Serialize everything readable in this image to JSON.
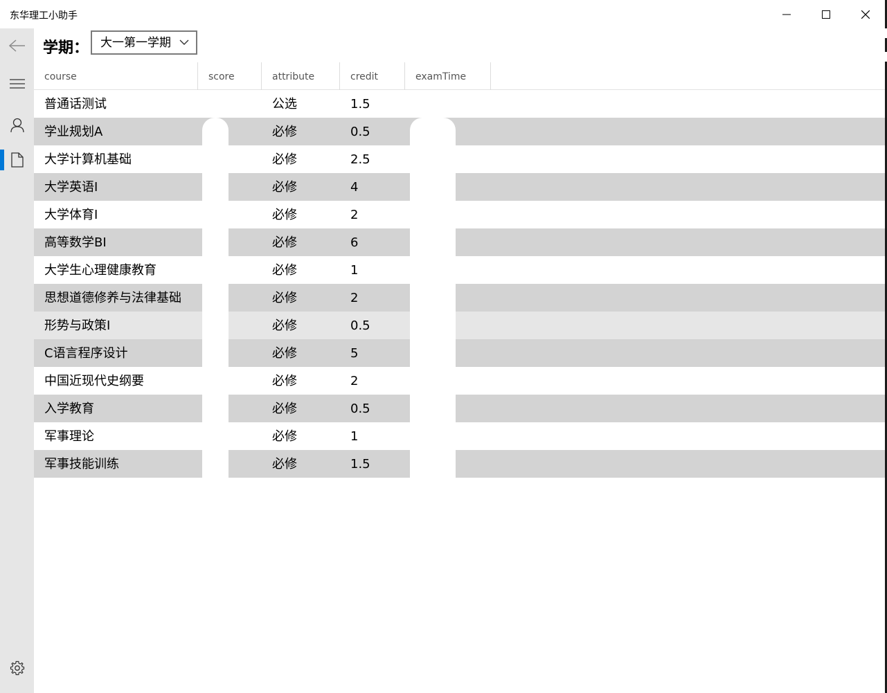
{
  "window": {
    "title": "东华理工小助手"
  },
  "term": {
    "label": "学期：",
    "selected": "大一第一学期"
  },
  "columns": [
    "course",
    "score",
    "attribute",
    "credit",
    "examTime"
  ],
  "rows": [
    {
      "course": "普通话测试",
      "score": "",
      "attribute": "公选",
      "credit": "1.5",
      "examTime": ""
    },
    {
      "course": "学业规划A",
      "score": "",
      "attribute": "必修",
      "credit": "0.5",
      "examTime": ""
    },
    {
      "course": "大学计算机基础",
      "score": "",
      "attribute": "必修",
      "credit": "2.5",
      "examTime": ""
    },
    {
      "course": "大学英语I",
      "score": "",
      "attribute": "必修",
      "credit": "4",
      "examTime": ""
    },
    {
      "course": "大学体育I",
      "score": "",
      "attribute": "必修",
      "credit": "2",
      "examTime": ""
    },
    {
      "course": "高等数学BI",
      "score": "",
      "attribute": "必修",
      "credit": "6",
      "examTime": ""
    },
    {
      "course": "大学生心理健康教育",
      "score": "",
      "attribute": "必修",
      "credit": "1",
      "examTime": ""
    },
    {
      "course": "思想道德修养与法律基础",
      "score": "",
      "attribute": "必修",
      "credit": "2",
      "examTime": ""
    },
    {
      "course": "形势与政策I",
      "score": "",
      "attribute": "必修",
      "credit": "0.5",
      "examTime": ""
    },
    {
      "course": "C语言程序设计",
      "score": "",
      "attribute": "必修",
      "credit": "5",
      "examTime": ""
    },
    {
      "course": "中国近现代史纲要",
      "score": "",
      "attribute": "必修",
      "credit": "2",
      "examTime": ""
    },
    {
      "course": "入学教育",
      "score": "",
      "attribute": "必修",
      "credit": "0.5",
      "examTime": ""
    },
    {
      "course": "军事理论",
      "score": "",
      "attribute": "必修",
      "credit": "1",
      "examTime": ""
    },
    {
      "course": "军事技能训练",
      "score": "",
      "attribute": "必修",
      "credit": "1.5",
      "examTime": ""
    }
  ],
  "icons": {
    "back": "back-arrow-icon",
    "menu": "hamburger-menu-icon",
    "user": "user-icon",
    "doc": "document-icon",
    "settings": "gear-icon"
  },
  "colors": {
    "accent": "#0078d7",
    "sidebar": "#e6e6e6",
    "row_alt": "#d3d3d3"
  }
}
